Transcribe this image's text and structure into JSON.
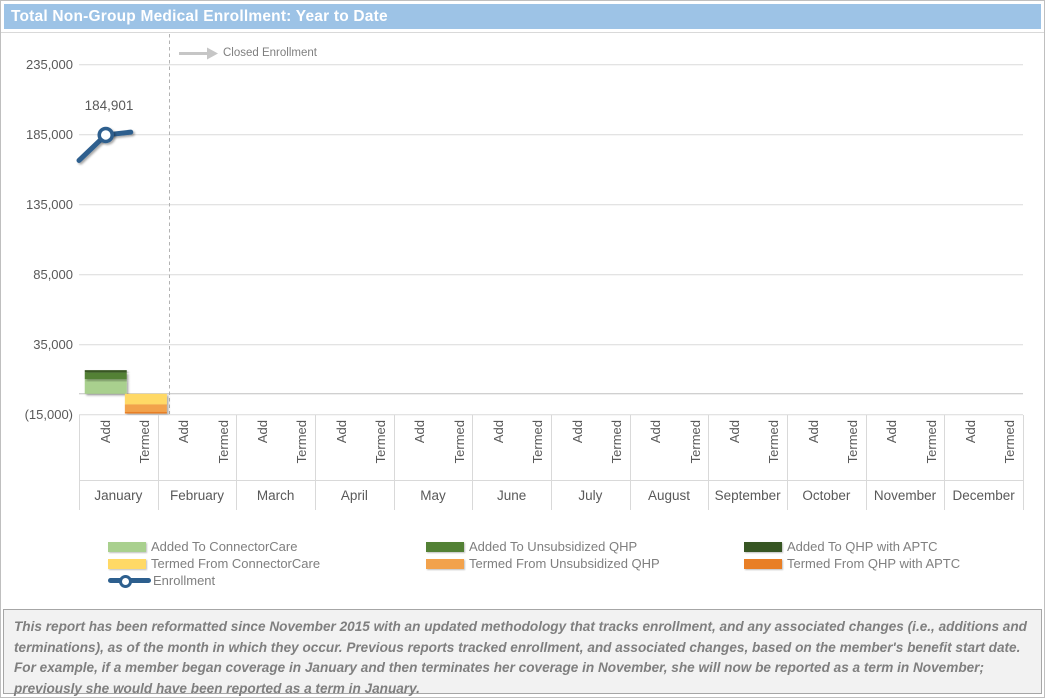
{
  "title": "Total Non-Group Medical Enrollment: Year to Date",
  "chart_data": {
    "type": "bar",
    "title": "Total Non-Group Medical Enrollment: Year to Date",
    "categories": [
      "January",
      "February",
      "March",
      "April",
      "May",
      "June",
      "July",
      "August",
      "September",
      "October",
      "November",
      "December"
    ],
    "sub_categories": [
      "Add",
      "Termed"
    ],
    "ylim": [
      -15000,
      260000
    ],
    "grid": true,
    "y_ticks": [
      {
        "value": 235000,
        "label": "235,000"
      },
      {
        "value": 185000,
        "label": "185,000"
      },
      {
        "value": 135000,
        "label": "135,000"
      },
      {
        "value": 85000,
        "label": "85,000"
      },
      {
        "value": 35000,
        "label": "35,000"
      },
      {
        "value": -15000,
        "label": "(15,000)"
      }
    ],
    "annotation_label": "Closed Enrollment",
    "series": [
      {
        "name": "Added To ConnectorCare",
        "group": "Add",
        "color": "#a9d08e",
        "values": {
          "January": 10500
        }
      },
      {
        "name": "Added To Unsubsidized QHP",
        "group": "Add",
        "color": "#538135",
        "values": {
          "January": 5000
        }
      },
      {
        "name": "Added To QHP with APTC",
        "group": "Add",
        "color": "#375623",
        "values": {
          "January": 1400
        }
      },
      {
        "name": "Termed From ConnectorCare",
        "group": "Termed",
        "color": "#ffd966",
        "values": {
          "January": -7600
        }
      },
      {
        "name": "Termed From Unsubsidized QHP",
        "group": "Termed",
        "color": "#f2a24c",
        "values": {
          "January": -5400
        }
      },
      {
        "name": "Termed From QHP with APTC",
        "group": "Termed",
        "color": "#e87f26",
        "values": {
          "January": -1100
        }
      }
    ],
    "enrollment": {
      "name": "Enrollment",
      "color": "#2d5f8e",
      "points": [
        {
          "month": "January",
          "value": 184901,
          "label": "184,901"
        }
      ]
    },
    "legend_position": "bottom"
  },
  "footer": {
    "text": "This report has been reformatted since November 2015 with an updated methodology that tracks enrollment, and any associated changes (i.e., additions and terminations), as of the month in which they occur.  Previous reports tracked enrollment, and associated changes, based on the member's benefit start date.  For example, if a member began coverage in January and then terminates her coverage in November, she will now be reported as a term in November; previously she would have been reported as a term in January."
  }
}
